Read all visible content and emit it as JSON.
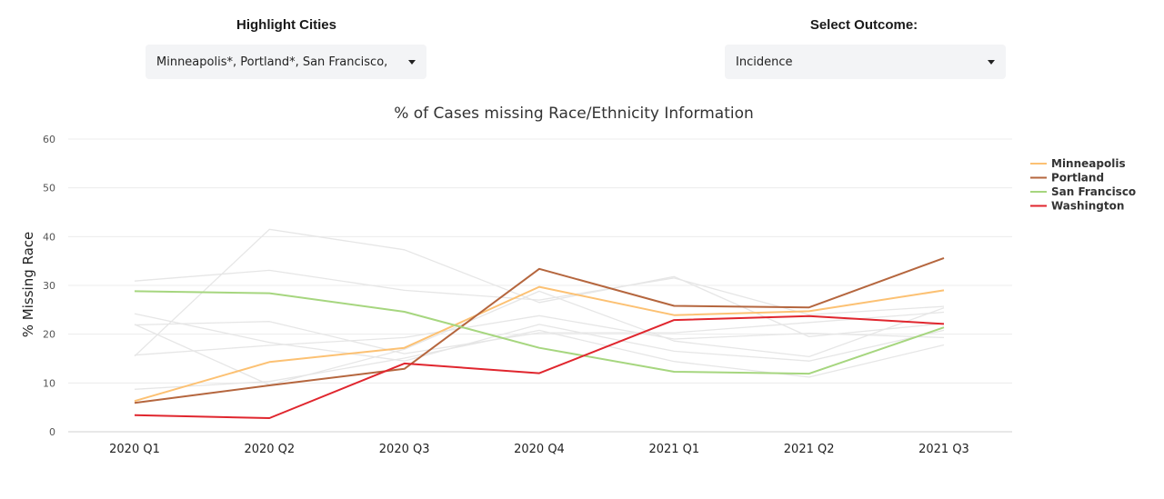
{
  "controls": {
    "highlight_label": "Highlight Cities",
    "highlight_value": "Minneapolis*, Portland*, San Francisco,",
    "outcome_label": "Select Outcome:",
    "outcome_value": "Incidence"
  },
  "chart_data": {
    "type": "line",
    "title": "% of Cases missing Race/Ethnicity Information",
    "ylabel": "% Missing Race",
    "xlabel": "",
    "ylim": [
      0,
      60
    ],
    "yticks": [
      0,
      10,
      20,
      30,
      40,
      50,
      60
    ],
    "grid": true,
    "legend_position": "right",
    "categories": [
      "2020 Q1",
      "2020 Q2",
      "2020 Q3",
      "2020 Q4",
      "2021 Q1",
      "2021 Q2",
      "2021 Q3"
    ],
    "series": [
      {
        "name": "Minneapolis",
        "color": "#fcc173",
        "highlight": true,
        "values": [
          6.3,
          14.3,
          17.2,
          29.7,
          23.9,
          24.7,
          29.0
        ]
      },
      {
        "name": "Portland",
        "color": "#b5663e",
        "highlight": true,
        "values": [
          5.9,
          9.5,
          12.9,
          33.4,
          25.8,
          25.5,
          35.6
        ]
      },
      {
        "name": "San Francisco",
        "color": "#a6d67f",
        "highlight": true,
        "values": [
          28.8,
          28.4,
          24.6,
          17.2,
          12.3,
          11.9,
          21.4
        ]
      },
      {
        "name": "Washington",
        "color": "#e0262e",
        "highlight": true,
        "values": [
          3.4,
          2.8,
          14.0,
          12.0,
          22.9,
          23.7,
          22.1
        ]
      },
      {
        "color": "#e6e6e6",
        "highlight": false,
        "values": [
          15.5,
          41.5,
          37.3,
          26.5,
          31.8,
          19.5,
          22.2
        ]
      },
      {
        "color": "#e6e6e6",
        "highlight": false,
        "values": [
          30.9,
          33.1,
          29.0,
          27.0,
          31.5,
          24.0,
          25.7
        ]
      },
      {
        "color": "#e6e6e6",
        "highlight": false,
        "values": [
          24.2,
          18.3,
          14.5,
          22.0,
          16.5,
          14.5,
          20.8
        ]
      },
      {
        "color": "#e6e6e6",
        "highlight": false,
        "values": [
          21.9,
          22.6,
          16.0,
          20.3,
          20.3,
          22.4,
          24.5
        ]
      },
      {
        "color": "#e6e6e6",
        "highlight": false,
        "values": [
          15.7,
          17.7,
          19.3,
          23.8,
          19.0,
          20.2,
          19.3
        ]
      },
      {
        "color": "#e6e6e6",
        "highlight": false,
        "values": [
          8.7,
          10.3,
          15.1,
          20.8,
          14.4,
          11.2,
          17.8
        ]
      },
      {
        "color": "#e6e6e6",
        "highlight": false,
        "values": [
          22.0,
          9.6,
          16.9,
          28.8,
          18.6,
          15.4,
          25.4
        ]
      }
    ]
  }
}
